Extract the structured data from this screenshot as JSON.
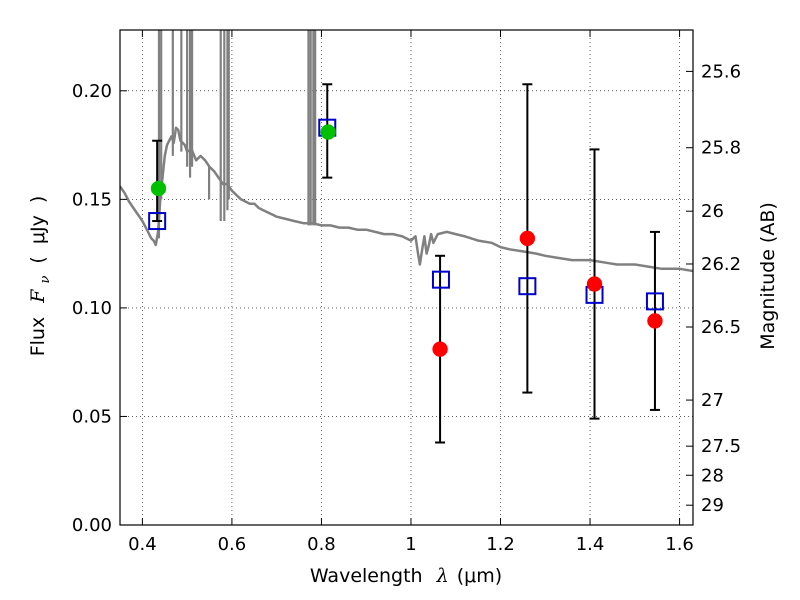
{
  "chart_data": {
    "type": "scatter",
    "title": "",
    "xlabel": {
      "text": "Wavelength",
      "symbol": "λ",
      "unit": "(μm)"
    },
    "ylabel": {
      "text": "Flux",
      "symbol": "F",
      "sub": "ν",
      "unit": "μJy"
    },
    "y2label": "Magnitude (AB)",
    "xlim": [
      0.35,
      1.63
    ],
    "ylim": [
      0.0,
      0.228
    ],
    "x_ticks": [
      0.4,
      0.6,
      0.8,
      1.0,
      1.2,
      1.4,
      1.6
    ],
    "x_tick_labels": [
      "0.4",
      "0.6",
      "0.8",
      "1",
      "1.2",
      "1.4",
      "1.6"
    ],
    "y_ticks": [
      0.0,
      0.05,
      0.1,
      0.15,
      0.2
    ],
    "y_tick_labels": [
      "0.00",
      "0.05",
      "0.10",
      "0.15",
      "0.20"
    ],
    "y2_ticks": [
      {
        "label": "25.6",
        "mag": 25.6
      },
      {
        "label": "25.8",
        "mag": 25.8
      },
      {
        "label": "26",
        "mag": 26.0
      },
      {
        "label": "26.2",
        "mag": 26.2
      },
      {
        "label": "26.5",
        "mag": 26.5
      },
      {
        "label": "27",
        "mag": 27.0
      },
      {
        "label": "27.5",
        "mag": 27.5
      },
      {
        "label": "28",
        "mag": 28.0
      },
      {
        "label": "29",
        "mag": 29.0
      }
    ],
    "grid": true,
    "observed_points": [
      {
        "x": 0.436,
        "y": 0.155,
        "yerr": 0.0,
        "color": "#00c000"
      },
      {
        "x": 0.815,
        "y": 0.181,
        "yerr": 0.0,
        "color": "#00c000"
      },
      {
        "x": 1.065,
        "y": 0.081,
        "yerr": 0.043,
        "color": "#ff0000"
      },
      {
        "x": 1.26,
        "y": 0.132,
        "yerr": 0.071,
        "color": "#ff0000"
      },
      {
        "x": 1.41,
        "y": 0.111,
        "yerr": 0.062,
        "color": "#ff0000"
      },
      {
        "x": 1.545,
        "y": 0.094,
        "yerr": 0.041,
        "color": "#ff0000"
      }
    ],
    "model_points": [
      {
        "x": 0.433,
        "y": 0.14,
        "yerr_lo": 0.0,
        "yerr_hi": 0.037
      },
      {
        "x": 0.813,
        "y": 0.183,
        "yerr_lo": 0.023,
        "yerr_hi": 0.02
      },
      {
        "x": 1.067,
        "y": 0.113,
        "yerr_lo": 0.0,
        "yerr_hi": 0.0
      },
      {
        "x": 1.26,
        "y": 0.11,
        "yerr_lo": 0.0,
        "yerr_hi": 0.0
      },
      {
        "x": 1.41,
        "y": 0.106,
        "yerr_lo": 0.0,
        "yerr_hi": 0.0
      },
      {
        "x": 1.545,
        "y": 0.103,
        "yerr_lo": 0.0,
        "yerr_hi": 0.0
      }
    ],
    "model_marker_color": "#0000cc",
    "error_bar_color": "#000000",
    "sed_color": "#808080",
    "sed_spectrum": [
      [
        0.35,
        0.156
      ],
      [
        0.36,
        0.153
      ],
      [
        0.37,
        0.149
      ],
      [
        0.38,
        0.146
      ],
      [
        0.39,
        0.143
      ],
      [
        0.4,
        0.14
      ],
      [
        0.41,
        0.136
      ],
      [
        0.42,
        0.132
      ],
      [
        0.425,
        0.131
      ],
      [
        0.43,
        0.129
      ],
      [
        0.435,
        0.135
      ],
      [
        0.44,
        0.15
      ],
      [
        0.445,
        0.16
      ],
      [
        0.45,
        0.17
      ],
      [
        0.455,
        0.175
      ],
      [
        0.46,
        0.177
      ],
      [
        0.465,
        0.179
      ],
      [
        0.47,
        0.176
      ],
      [
        0.475,
        0.183
      ],
      [
        0.48,
        0.182
      ],
      [
        0.485,
        0.177
      ],
      [
        0.49,
        0.176
      ],
      [
        0.495,
        0.175
      ],
      [
        0.5,
        0.172
      ],
      [
        0.51,
        0.173
      ],
      [
        0.52,
        0.168
      ],
      [
        0.53,
        0.17
      ],
      [
        0.54,
        0.168
      ],
      [
        0.55,
        0.165
      ],
      [
        0.56,
        0.163
      ],
      [
        0.57,
        0.16
      ],
      [
        0.58,
        0.157
      ],
      [
        0.59,
        0.157
      ],
      [
        0.6,
        0.154
      ],
      [
        0.61,
        0.152
      ],
      [
        0.62,
        0.15
      ],
      [
        0.63,
        0.149
      ],
      [
        0.64,
        0.148
      ],
      [
        0.65,
        0.148
      ],
      [
        0.66,
        0.146
      ],
      [
        0.67,
        0.145
      ],
      [
        0.68,
        0.144
      ],
      [
        0.69,
        0.143
      ],
      [
        0.7,
        0.142
      ],
      [
        0.72,
        0.141
      ],
      [
        0.74,
        0.14
      ],
      [
        0.76,
        0.139
      ],
      [
        0.78,
        0.139
      ],
      [
        0.8,
        0.138
      ],
      [
        0.82,
        0.138
      ],
      [
        0.84,
        0.137
      ],
      [
        0.86,
        0.137
      ],
      [
        0.88,
        0.136
      ],
      [
        0.9,
        0.136
      ],
      [
        0.92,
        0.135
      ],
      [
        0.94,
        0.134
      ],
      [
        0.96,
        0.134
      ],
      [
        0.98,
        0.133
      ],
      [
        1.0,
        0.131
      ],
      [
        1.01,
        0.133
      ],
      [
        1.015,
        0.126
      ],
      [
        1.02,
        0.12
      ],
      [
        1.025,
        0.127
      ],
      [
        1.03,
        0.133
      ],
      [
        1.035,
        0.125
      ],
      [
        1.04,
        0.129
      ],
      [
        1.045,
        0.134
      ],
      [
        1.05,
        0.13
      ],
      [
        1.06,
        0.134
      ],
      [
        1.08,
        0.135
      ],
      [
        1.1,
        0.134
      ],
      [
        1.12,
        0.133
      ],
      [
        1.15,
        0.131
      ],
      [
        1.18,
        0.13
      ],
      [
        1.2,
        0.128
      ],
      [
        1.22,
        0.127
      ],
      [
        1.25,
        0.126
      ],
      [
        1.28,
        0.125
      ],
      [
        1.3,
        0.124
      ],
      [
        1.33,
        0.123
      ],
      [
        1.36,
        0.122
      ],
      [
        1.4,
        0.122
      ],
      [
        1.43,
        0.121
      ],
      [
        1.46,
        0.12
      ],
      [
        1.5,
        0.12
      ],
      [
        1.53,
        0.119
      ],
      [
        1.56,
        0.118
      ],
      [
        1.6,
        0.118
      ],
      [
        1.63,
        0.117
      ]
    ],
    "sed_lines": [
      {
        "x": 0.437,
        "y_from": 0.132,
        "y_to": 0.228
      },
      {
        "x": 0.442,
        "y_from": 0.15,
        "y_to": 0.228
      },
      {
        "x": 0.468,
        "y_from": 0.17,
        "y_to": 0.228
      },
      {
        "x": 0.487,
        "y_from": 0.172,
        "y_to": 0.228
      },
      {
        "x": 0.5,
        "y_from": 0.165,
        "y_to": 0.228
      },
      {
        "x": 0.5065,
        "y_from": 0.16,
        "y_to": 0.228
      },
      {
        "x": 0.511,
        "y_from": 0.165,
        "y_to": 0.228
      },
      {
        "x": 0.549,
        "y_from": 0.15,
        "y_to": 0.165
      },
      {
        "x": 0.575,
        "y_from": 0.14,
        "y_to": 0.228
      },
      {
        "x": 0.583,
        "y_from": 0.14,
        "y_to": 0.228
      },
      {
        "x": 0.59,
        "y_from": 0.145,
        "y_to": 0.228
      },
      {
        "x": 0.593,
        "y_from": 0.15,
        "y_to": 0.228
      },
      {
        "x": 0.771,
        "y_from": 0.138,
        "y_to": 0.228
      },
      {
        "x": 0.776,
        "y_from": 0.138,
        "y_to": 0.228
      },
      {
        "x": 0.782,
        "y_from": 0.138,
        "y_to": 0.228
      },
      {
        "x": 0.786,
        "y_from": 0.138,
        "y_to": 0.228
      }
    ]
  }
}
